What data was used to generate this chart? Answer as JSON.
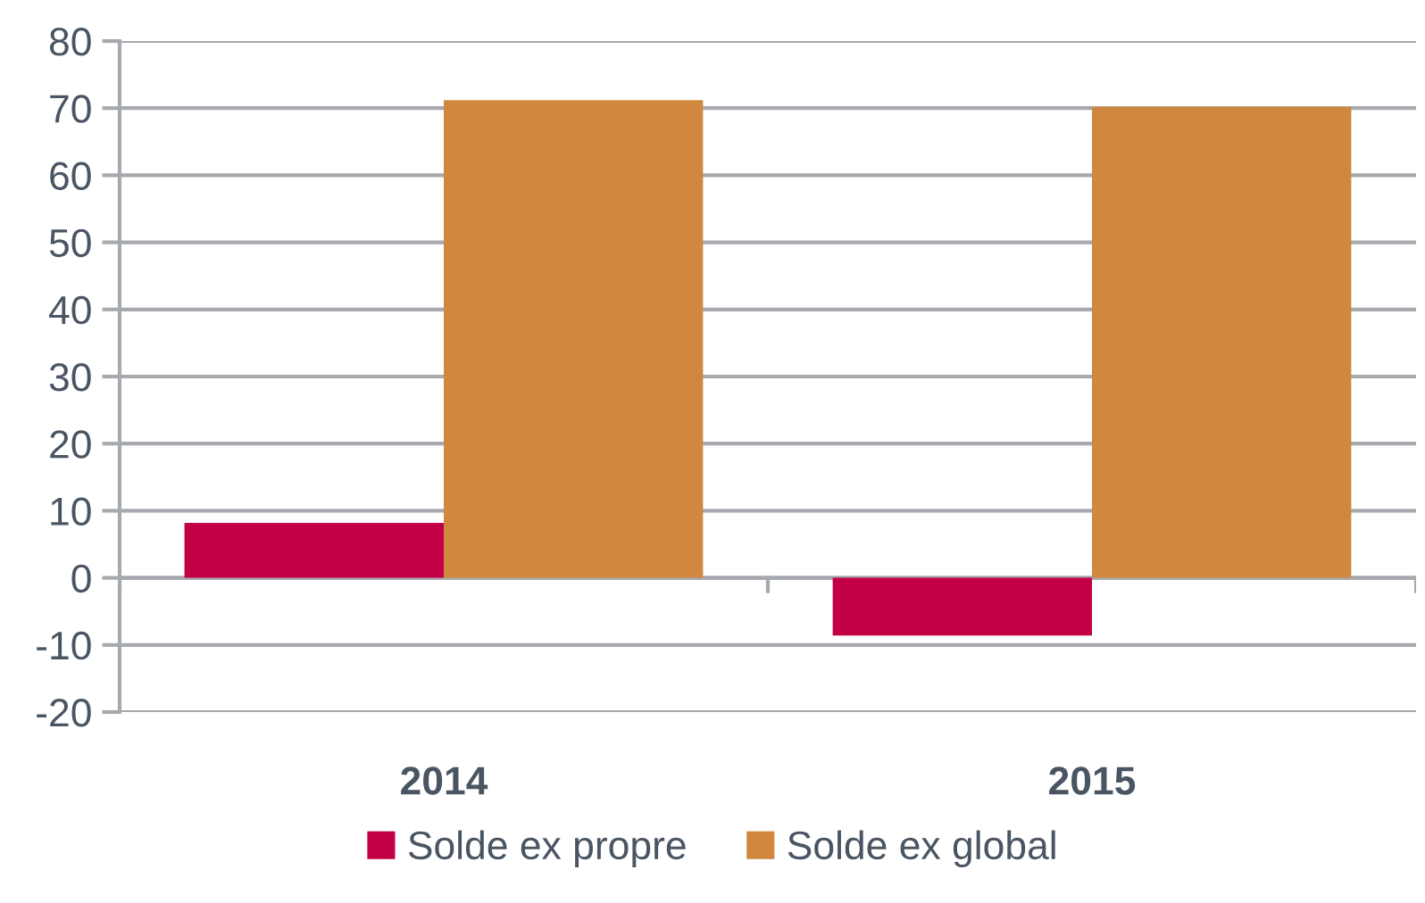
{
  "chart_data": {
    "type": "bar",
    "categories": [
      "2014",
      "2015"
    ],
    "series": [
      {
        "name": "Solde ex propre",
        "color": "#c30045",
        "values": [
          8.2,
          -8.6
        ]
      },
      {
        "name": "Solde ex global",
        "color": "#cf883e",
        "values": [
          71.2,
          70.2
        ]
      }
    ],
    "ylim": [
      -20,
      80
    ],
    "yticks": [
      -20,
      -10,
      0,
      10,
      20,
      30,
      40,
      50,
      60,
      70,
      80
    ],
    "grid": "y",
    "legend": "bottom"
  }
}
